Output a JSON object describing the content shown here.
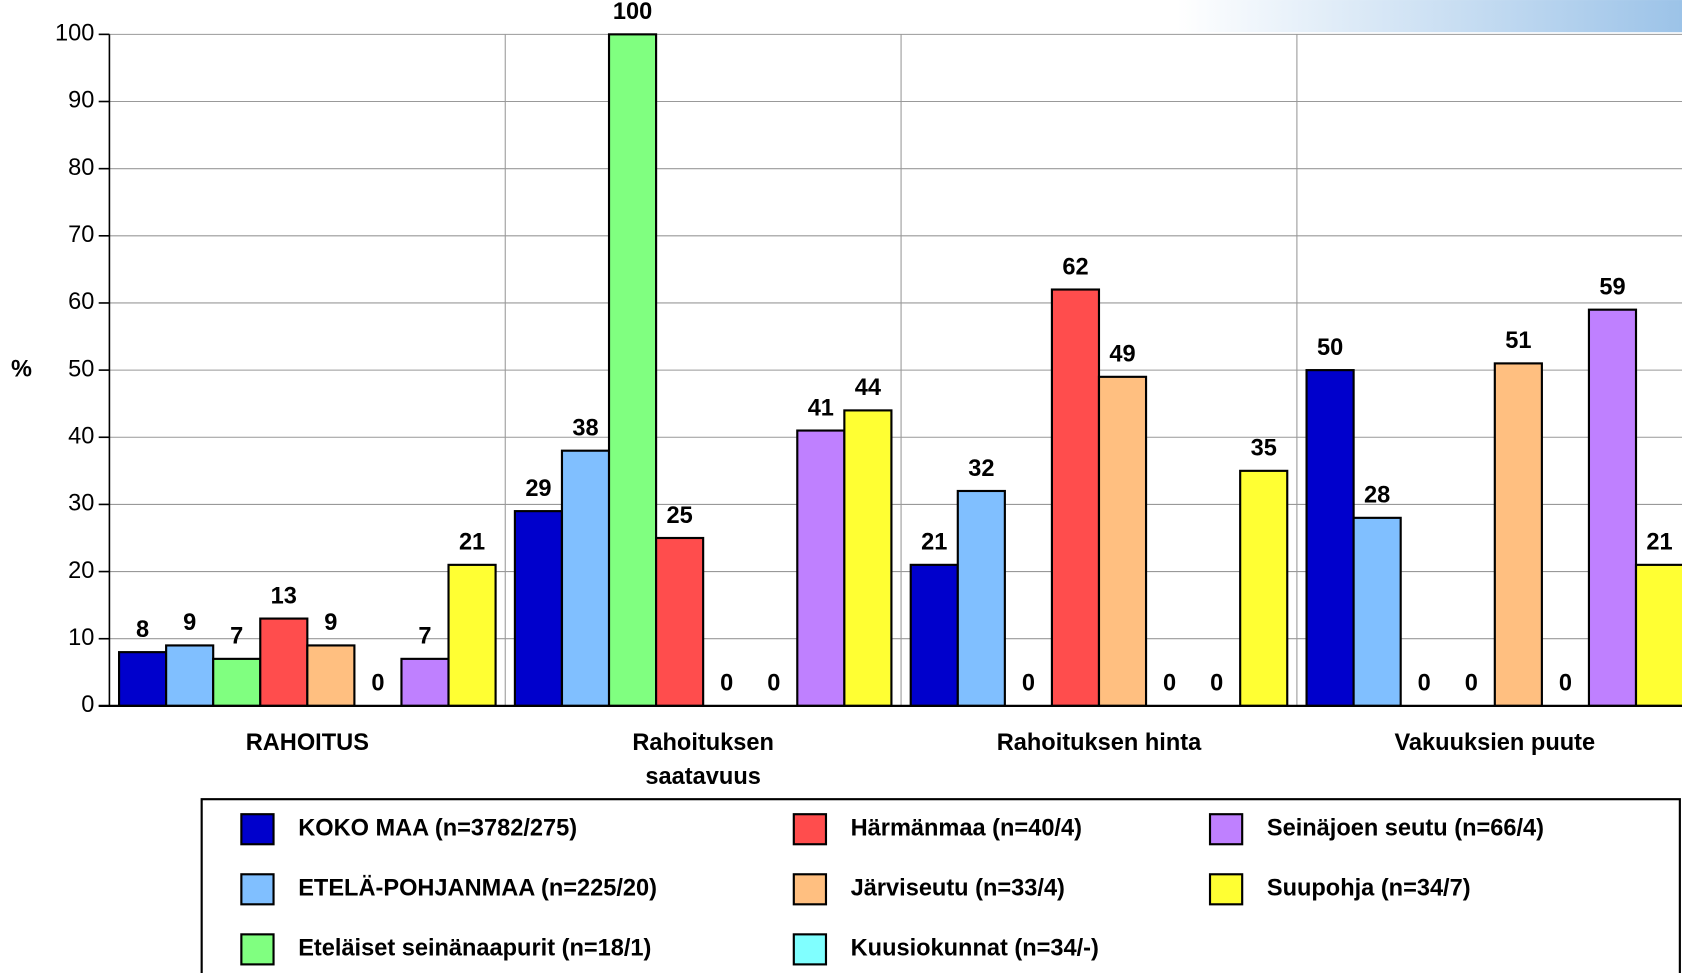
{
  "chart_data": {
    "type": "bar",
    "ylabel": "%",
    "categories": [
      "RAHOITUS",
      "Rahoituksen\nsaatavuus",
      "Rahoituksen hinta",
      "Vakuuksien puute"
    ],
    "series": [
      {
        "name": "KOKO MAA (n=3782/275)",
        "color": "#0000cc",
        "values": [
          8,
          29,
          21,
          50
        ]
      },
      {
        "name": "ETELÄ-POHJANMAA (n=225/20)",
        "color": "#80bfff",
        "values": [
          9,
          38,
          32,
          28
        ]
      },
      {
        "name": "Eteläiset seinänaapurit (n=18/1)",
        "color": "#80ff80",
        "values": [
          7,
          100,
          0,
          0
        ]
      },
      {
        "name": "Härmänmaa (n=40/4)",
        "color": "#ff4d4d",
        "values": [
          13,
          25,
          62,
          0
        ]
      },
      {
        "name": "Järviseutu (n=33/4)",
        "color": "#ffbf80",
        "values": [
          9,
          0,
          49,
          51
        ]
      },
      {
        "name": "Kuusiokunnat (n=34/-)",
        "color": "#80ffff",
        "values": [
          0,
          0,
          0,
          0
        ]
      },
      {
        "name": "Seinäjoen seutu (n=66/4)",
        "color": "#bf80ff",
        "values": [
          7,
          41,
          0,
          59
        ]
      },
      {
        "name": "Suupohja (n=34/7)",
        "color": "#ffff33",
        "values": [
          21,
          44,
          35,
          21
        ]
      }
    ],
    "ylim": [
      0,
      100
    ],
    "yticks": [
      0,
      10,
      20,
      30,
      40,
      50,
      60,
      70,
      80,
      90,
      100
    ],
    "grid": true
  }
}
